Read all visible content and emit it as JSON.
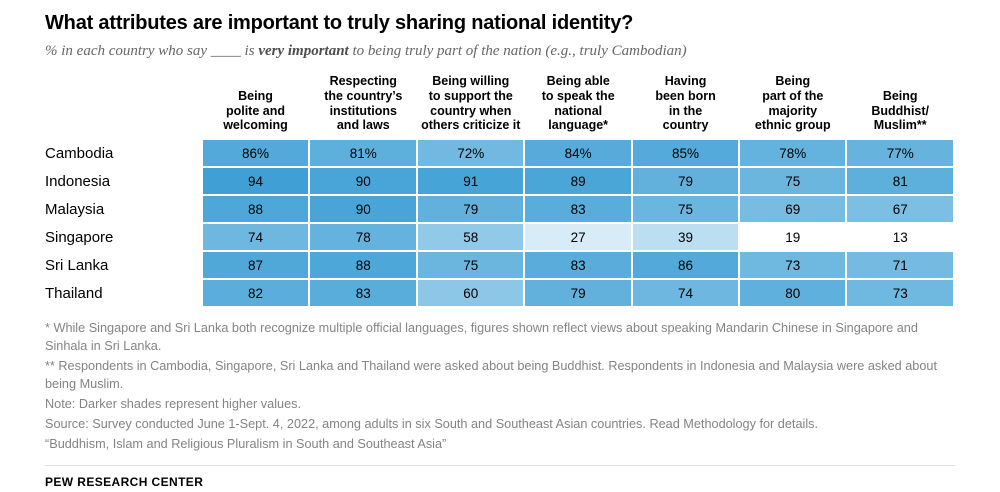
{
  "header": {
    "title": "What attributes are important to truly sharing national identity?",
    "subtitle_prefix": "% in each country who say ____ is ",
    "subtitle_bold": "very important",
    "subtitle_suffix": " to being truly part of the nation (e.g., truly Cambodian)"
  },
  "chart_data": {
    "type": "heatmap",
    "columns": [
      "Being\npolite and\nwelcoming",
      "Respecting\nthe country’s\ninstitutions\nand laws",
      "Being willing\nto support the\ncountry when\nothers criticize it",
      "Being able\nto speak the\nnational\nlanguage*",
      "Having\nbeen born\nin the\ncountry",
      "Being\npart of the\nmajority\nethnic group",
      "Being\nBuddhist/\nMuslim**"
    ],
    "rows": [
      "Cambodia",
      "Indonesia",
      "Malaysia",
      "Singapore",
      "Sri Lanka",
      "Thailand"
    ],
    "values": [
      [
        86,
        81,
        72,
        84,
        85,
        78,
        77
      ],
      [
        94,
        90,
        91,
        89,
        79,
        75,
        81
      ],
      [
        88,
        90,
        79,
        83,
        75,
        69,
        67
      ],
      [
        74,
        78,
        58,
        27,
        39,
        19,
        13
      ],
      [
        87,
        88,
        75,
        83,
        86,
        73,
        71
      ],
      [
        82,
        83,
        60,
        79,
        74,
        80,
        73
      ]
    ],
    "first_row_suffix": "%",
    "value_range": [
      0,
      100
    ],
    "color_scale": {
      "low": "#dbeef8",
      "high": "#3e9fd5",
      "white_below": 25,
      "domain": [
        25,
        95
      ]
    },
    "legend_note": "Darker shades represent higher values"
  },
  "footnotes": [
    "* While Singapore and Sri Lanka both recognize multiple official languages, figures shown reflect views about speaking Mandarin Chinese in Singapore and Sinhala in Sri Lanka.",
    "** Respondents in Cambodia, Singapore, Sri Lanka and Thailand were asked about being Buddhist. Respondents in Indonesia and Malaysia were asked about being Muslim.",
    "Note: Darker shades represent higher values.",
    "Source: Survey conducted June 1-Sept. 4, 2022, among adults in six South and Southeast Asian countries. Read Methodology for details.",
    "“Buddhism, Islam and Religious Pluralism in South and Southeast Asia”"
  ],
  "footer": {
    "brand": "PEW RESEARCH CENTER"
  }
}
